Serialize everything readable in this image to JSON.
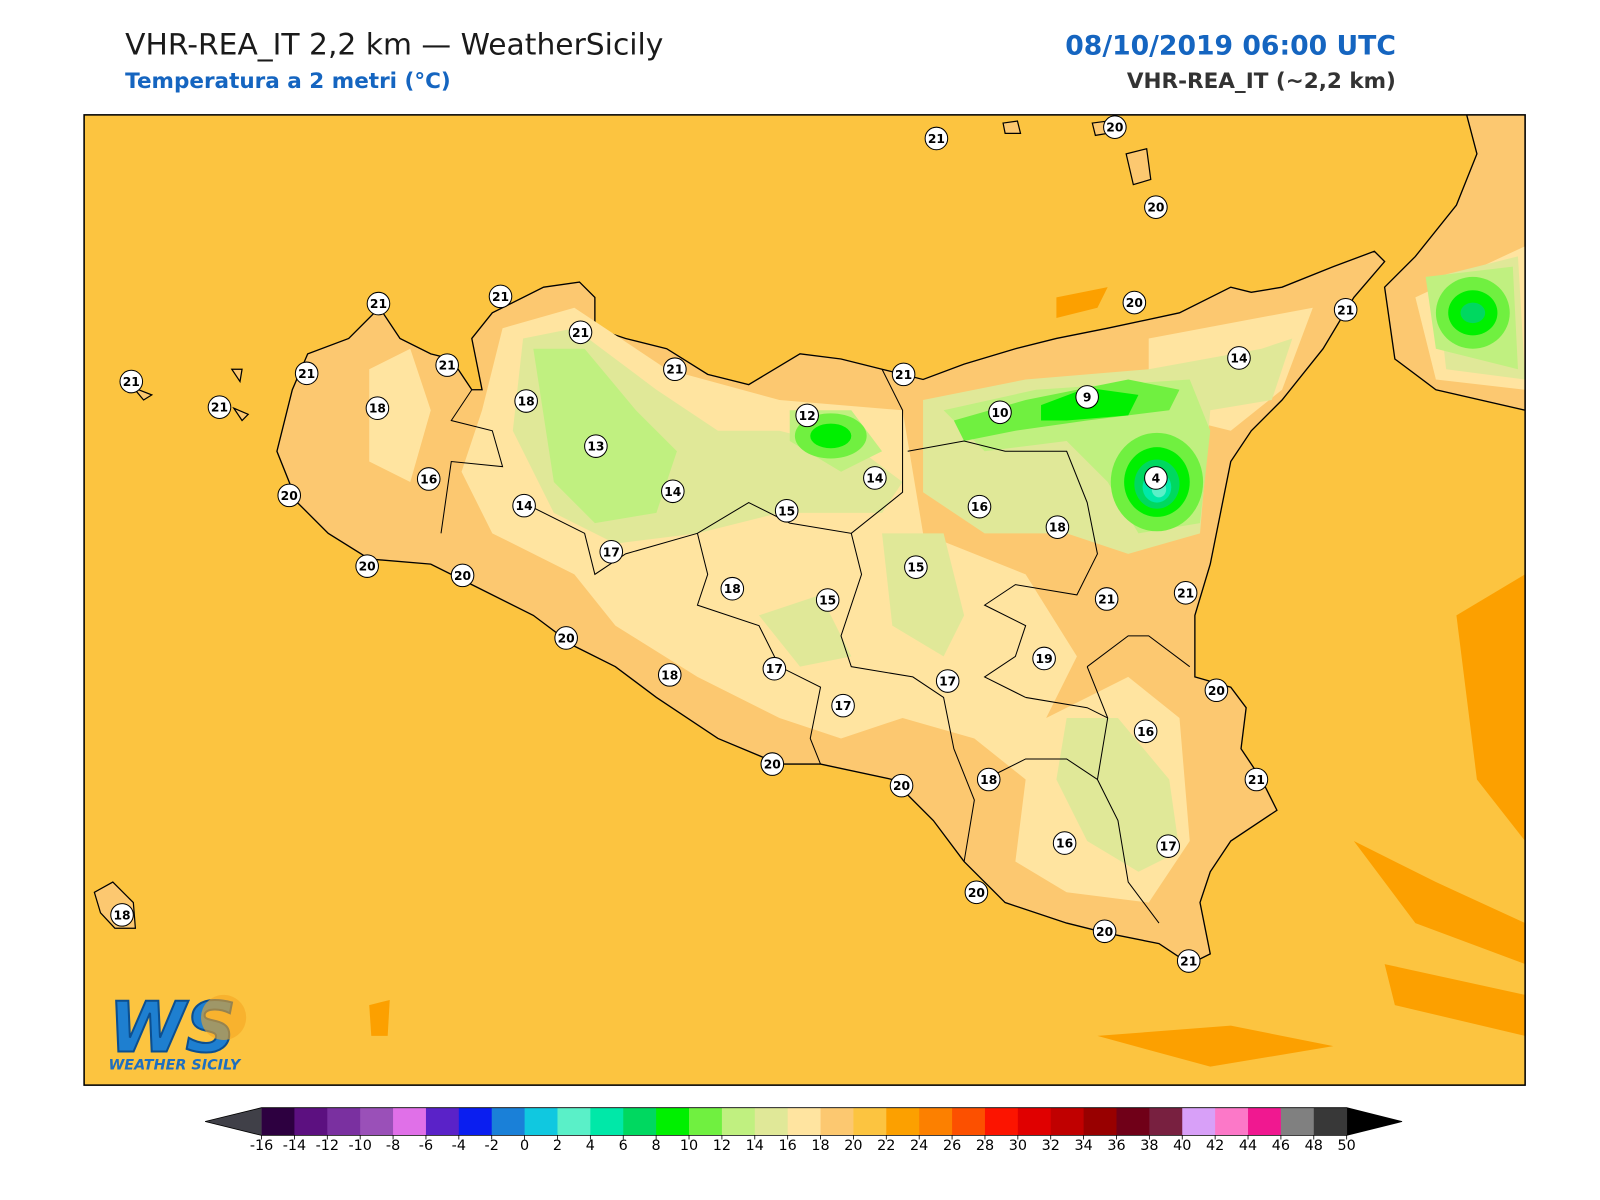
{
  "header": {
    "title": "VHR-REA_IT 2,2 km — WeatherSicily",
    "subtitle": "Temperatura a 2 metri (°C)",
    "datetime": "08/10/2019 06:00 UTC",
    "model": "VHR-REA_IT (~2,2 km)"
  },
  "map": {
    "background_color": "#fcc440",
    "stations": [
      21,
      20,
      20,
      21,
      21,
      21,
      21,
      21,
      21,
      21,
      21,
      18,
      18,
      21,
      20,
      21,
      14,
      9,
      10,
      12,
      13,
      16,
      20,
      14,
      14,
      4,
      14,
      15,
      16,
      18,
      17,
      20,
      20,
      15,
      18,
      15,
      21,
      21,
      20,
      19,
      18,
      17,
      17,
      17,
      20,
      16,
      20,
      20,
      18,
      21,
      16,
      17,
      20,
      20,
      21,
      18
    ]
  },
  "logo": {
    "mark": "WS",
    "name": "WEATHER SICILY"
  },
  "colorbar": {
    "ticks": [
      -16,
      -14,
      -12,
      -10,
      -8,
      -6,
      -4,
      -2,
      0,
      2,
      4,
      6,
      8,
      10,
      12,
      14,
      16,
      18,
      20,
      22,
      24,
      26,
      28,
      30,
      32,
      34,
      36,
      38,
      40,
      42,
      44,
      46,
      48,
      50
    ],
    "colors": [
      "#2d0040",
      "#5c1080",
      "#7a30a0",
      "#9a50b8",
      "#e070e8",
      "#5a22c8",
      "#0a1ef0",
      "#1a80d8",
      "#10c8e0",
      "#5af0c8",
      "#00e8a8",
      "#00d860",
      "#00f000",
      "#70f040",
      "#c0f080",
      "#e0e898",
      "#ffe4a0",
      "#fcc870",
      "#fcc440",
      "#fca000",
      "#fc8000",
      "#fc5000",
      "#fc1400",
      "#e00000",
      "#c00000",
      "#980000",
      "#700018",
      "#782040",
      "#d8a0f8",
      "#fc78c8",
      "#f01890",
      "#808080",
      "#383838"
    ],
    "under_color": "#404048",
    "over_color": "#000000"
  }
}
